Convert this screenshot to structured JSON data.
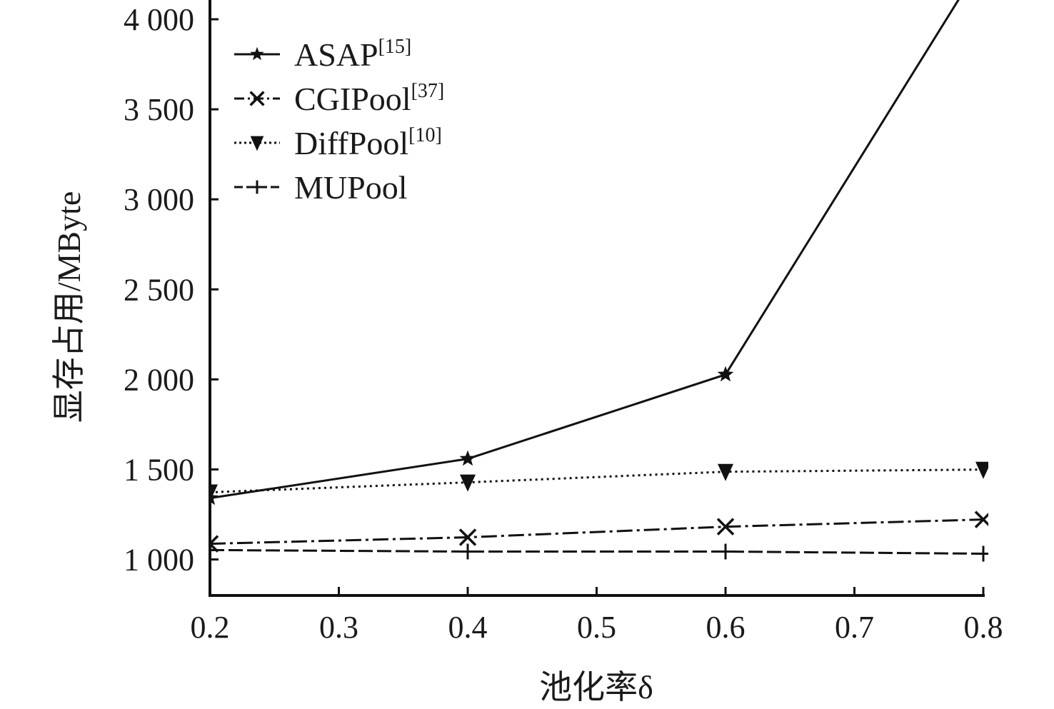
{
  "chart_data": {
    "type": "line",
    "title": "",
    "xlabel": "池化率δ",
    "ylabel": "显存占用/MByte",
    "x": [
      0.2,
      0.4,
      0.6,
      0.8
    ],
    "xlim": [
      0.2,
      0.8
    ],
    "ylim": [
      800,
      4000
    ],
    "xticks": [
      "0.2",
      "0.3",
      "0.4",
      "0.5",
      "0.6",
      "0.7",
      "0.8"
    ],
    "xtick_values": [
      0.2,
      0.3,
      0.4,
      0.5,
      0.6,
      0.7,
      0.8
    ],
    "yticks": [
      "1 000",
      "1 500",
      "2 000",
      "2 500",
      "3 000",
      "3 500",
      "4 000"
    ],
    "ytick_values": [
      1000,
      1500,
      2000,
      2500,
      3000,
      3500,
      4000
    ],
    "grid": false,
    "legend_position": "top-left",
    "series": [
      {
        "name": "ASAP",
        "ref": "[15]",
        "marker": "star",
        "dash": "solid",
        "values": [
          1341,
          1559,
          2027,
          4330
        ]
      },
      {
        "name": "CGIPool",
        "ref": "[37]",
        "marker": "x",
        "dash": "dashdot",
        "values": [
          1087,
          1123,
          1182,
          1222
        ]
      },
      {
        "name": "DiffPool",
        "ref": "[10]",
        "marker": "triangle-down",
        "dash": "dotted",
        "values": [
          1373,
          1428,
          1487,
          1499
        ]
      },
      {
        "name": "MUPool",
        "ref": "",
        "marker": "plus",
        "dash": "dashed",
        "values": [
          1052,
          1044,
          1044,
          1032
        ]
      }
    ],
    "colors": {
      "line": "#111111"
    }
  }
}
